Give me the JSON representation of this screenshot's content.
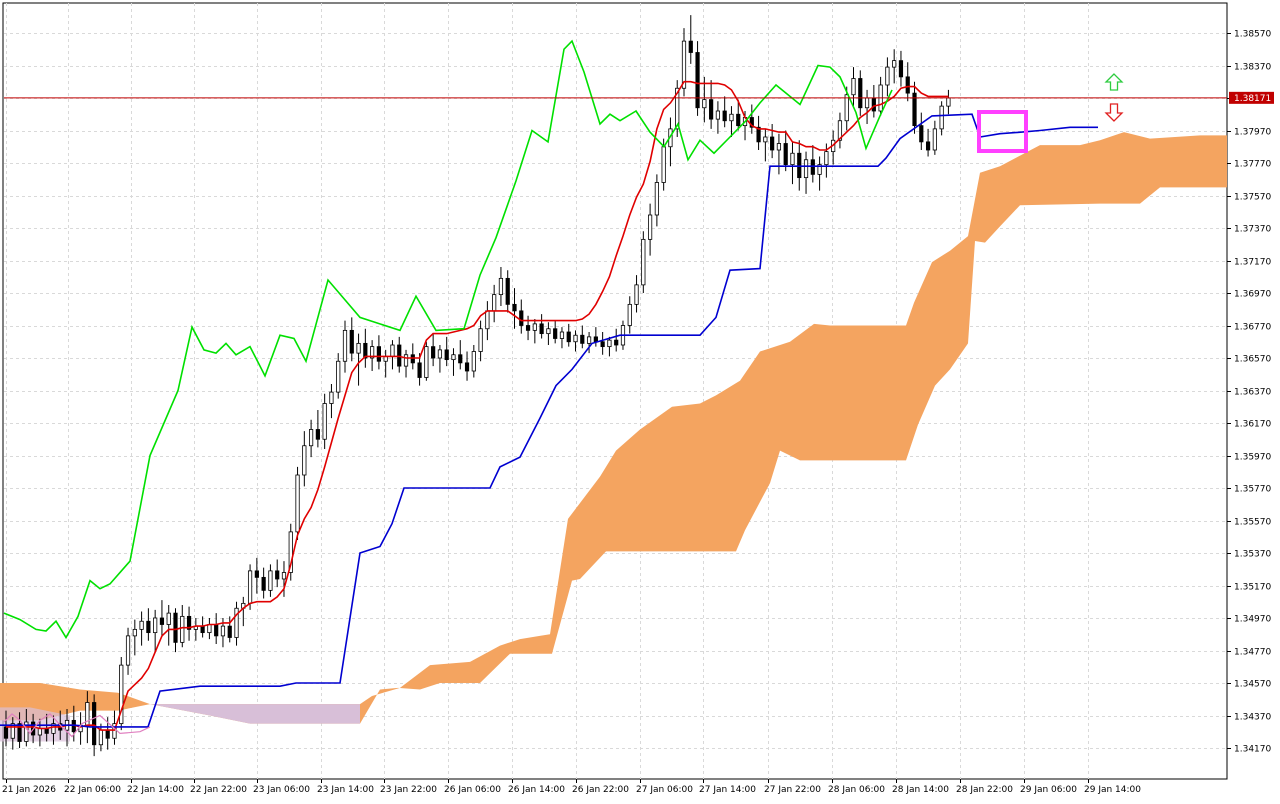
{
  "chart_data": {
    "type": "candlestick",
    "title": "",
    "colors": {
      "background": "#ffffff",
      "grid": "#d9d9d9",
      "candle_up": "#ffffff",
      "candle_down": "#000000",
      "candle_outline": "#000000",
      "tenkan_sen": "#e00000",
      "kijun_sen": "#0000d0",
      "chikou_span": "#00e000",
      "kumo_bull": "#f4a460",
      "kumo_bear": "#d8bfd8",
      "current_price_line": "#c00000",
      "highlight_box": "#ff40ff",
      "arrow_up": "#2ecc40",
      "arrow_down": "#e02020"
    },
    "current_price": {
      "value": 1.38171,
      "label": "1.38171"
    },
    "y_axis": {
      "range": [
        1.412,
        1.3878
      ],
      "tick_values": [
        1.3857,
        1.3837,
        1.3817,
        1.3797,
        1.3777,
        1.3757,
        1.3737,
        1.3717,
        1.3697,
        1.3677,
        1.3657,
        1.3637,
        1.3617,
        1.3597,
        1.3577,
        1.3557,
        1.3537,
        1.3517,
        1.3497,
        1.3477,
        1.3457,
        1.3437,
        1.3417
      ],
      "tick_labels": [
        "1.38570",
        "1.38370",
        "1.38170",
        "1.37970",
        "1.37770",
        "1.37570",
        "1.37370",
        "1.37170",
        "1.36970",
        "1.36770",
        "1.36570",
        "1.36370",
        "1.36170",
        "1.35970",
        "1.35770",
        "1.35570",
        "1.35370",
        "1.35170",
        "1.34970",
        "1.34770",
        "1.34570",
        "1.34370",
        "1.34170"
      ]
    },
    "x_axis": {
      "tick_labels": [
        "21 Jan 2026",
        "22 Jan 06:00",
        "22 Jan 14:00",
        "22 Jan 22:00",
        "23 Jan 06:00",
        "23 Jan 14:00",
        "23 Jan 22:00",
        "26 Jan 06:00",
        "26 Jan 14:00",
        "26 Jan 22:00",
        "27 Jan 06:00",
        "27 Jan 14:00",
        "27 Jan 22:00",
        "28 Jan 06:00",
        "28 Jan 14:00",
        "28 Jan 22:00",
        "29 Jan 06:00",
        "29 Jan 14:00"
      ]
    },
    "candles": [
      [
        1.343,
        1.344,
        1.3418,
        1.3423
      ],
      [
        1.3423,
        1.3436,
        1.3416,
        1.3432
      ],
      [
        1.3432,
        1.3439,
        1.3417,
        1.3421
      ],
      [
        1.3421,
        1.3441,
        1.3418,
        1.3433
      ],
      [
        1.3433,
        1.3438,
        1.342,
        1.3425
      ],
      [
        1.3425,
        1.3435,
        1.3418,
        1.3429
      ],
      [
        1.3429,
        1.3438,
        1.3421,
        1.3426
      ],
      [
        1.3426,
        1.3437,
        1.3419,
        1.3432
      ],
      [
        1.3432,
        1.344,
        1.3422,
        1.3428
      ],
      [
        1.3428,
        1.3441,
        1.3418,
        1.3434
      ],
      [
        1.3434,
        1.3443,
        1.3421,
        1.3427
      ],
      [
        1.3427,
        1.3439,
        1.3419,
        1.3431
      ],
      [
        1.3431,
        1.3452,
        1.342,
        1.3445
      ],
      [
        1.3445,
        1.345,
        1.3412,
        1.3419
      ],
      [
        1.3419,
        1.3432,
        1.3415,
        1.3428
      ],
      [
        1.3428,
        1.3436,
        1.3416,
        1.3423
      ],
      [
        1.3423,
        1.344,
        1.3419,
        1.3432
      ],
      [
        1.3432,
        1.3473,
        1.3428,
        1.3468
      ],
      [
        1.3468,
        1.3491,
        1.3462,
        1.3486
      ],
      [
        1.3486,
        1.3496,
        1.3474,
        1.349
      ],
      [
        1.349,
        1.3501,
        1.348,
        1.3495
      ],
      [
        1.3495,
        1.3503,
        1.3483,
        1.3488
      ],
      [
        1.3488,
        1.3502,
        1.3476,
        1.3497
      ],
      [
        1.3497,
        1.3508,
        1.3486,
        1.3493
      ],
      [
        1.3493,
        1.3505,
        1.348,
        1.35
      ],
      [
        1.35,
        1.3503,
        1.3476,
        1.3482
      ],
      [
        1.3482,
        1.3505,
        1.3479,
        1.3498
      ],
      [
        1.3498,
        1.3504,
        1.3483,
        1.349
      ],
      [
        1.349,
        1.3497,
        1.3483,
        1.3492
      ],
      [
        1.3492,
        1.3498,
        1.3485,
        1.3488
      ],
      [
        1.3488,
        1.3497,
        1.3484,
        1.3493
      ],
      [
        1.3493,
        1.35,
        1.3481,
        1.3486
      ],
      [
        1.3486,
        1.3497,
        1.3479,
        1.3492
      ],
      [
        1.3492,
        1.3498,
        1.3482,
        1.3485
      ],
      [
        1.3485,
        1.3507,
        1.348,
        1.3503
      ],
      [
        1.3503,
        1.351,
        1.3492,
        1.3506
      ],
      [
        1.3506,
        1.353,
        1.3502,
        1.3526
      ],
      [
        1.3526,
        1.3534,
        1.3512,
        1.3522
      ],
      [
        1.3522,
        1.3528,
        1.3509,
        1.3514
      ],
      [
        1.3514,
        1.353,
        1.351,
        1.3526
      ],
      [
        1.3526,
        1.3533,
        1.3516,
        1.3521
      ],
      [
        1.3521,
        1.3532,
        1.351,
        1.3525
      ],
      [
        1.3525,
        1.3555,
        1.352,
        1.355
      ],
      [
        1.355,
        1.359,
        1.3545,
        1.3585
      ],
      [
        1.3585,
        1.3612,
        1.3578,
        1.3603
      ],
      [
        1.3603,
        1.3619,
        1.3596,
        1.3613
      ],
      [
        1.3613,
        1.3625,
        1.3602,
        1.3607
      ],
      [
        1.3607,
        1.3635,
        1.3601,
        1.3629
      ],
      [
        1.3629,
        1.3641,
        1.362,
        1.3636
      ],
      [
        1.3636,
        1.366,
        1.3632,
        1.3655
      ],
      [
        1.3655,
        1.368,
        1.3648,
        1.3674
      ],
      [
        1.3674,
        1.3682,
        1.3655,
        1.366
      ],
      [
        1.366,
        1.3672,
        1.364,
        1.3666
      ],
      [
        1.3666,
        1.3675,
        1.3651,
        1.3657
      ],
      [
        1.3657,
        1.3668,
        1.3649,
        1.3664
      ],
      [
        1.3664,
        1.3671,
        1.365,
        1.3655
      ],
      [
        1.3655,
        1.3662,
        1.3645,
        1.3658
      ],
      [
        1.3658,
        1.3668,
        1.365,
        1.3665
      ],
      [
        1.3665,
        1.367,
        1.3648,
        1.3652
      ],
      [
        1.3652,
        1.3662,
        1.3645,
        1.3659
      ],
      [
        1.3659,
        1.3666,
        1.365,
        1.3654
      ],
      [
        1.3654,
        1.366,
        1.364,
        1.3645
      ],
      [
        1.3645,
        1.3667,
        1.3643,
        1.3664
      ],
      [
        1.3664,
        1.3672,
        1.3652,
        1.3657
      ],
      [
        1.3657,
        1.3665,
        1.3648,
        1.3662
      ],
      [
        1.3662,
        1.367,
        1.3652,
        1.3656
      ],
      [
        1.3656,
        1.3663,
        1.3646,
        1.3659
      ],
      [
        1.3659,
        1.3668,
        1.365,
        1.3654
      ],
      [
        1.3654,
        1.3661,
        1.3643,
        1.3649
      ],
      [
        1.3649,
        1.3665,
        1.3645,
        1.3661
      ],
      [
        1.3661,
        1.368,
        1.3655,
        1.3675
      ],
      [
        1.3675,
        1.3692,
        1.3668,
        1.3686
      ],
      [
        1.3686,
        1.3702,
        1.3679,
        1.3696
      ],
      [
        1.3696,
        1.3713,
        1.3689,
        1.3706
      ],
      [
        1.3706,
        1.3711,
        1.3685,
        1.369
      ],
      [
        1.369,
        1.37,
        1.3675,
        1.3686
      ],
      [
        1.3686,
        1.3693,
        1.3672,
        1.3677
      ],
      [
        1.3677,
        1.3683,
        1.3668,
        1.3674
      ],
      [
        1.3674,
        1.3681,
        1.3666,
        1.3678
      ],
      [
        1.3678,
        1.3684,
        1.3669,
        1.3672
      ],
      [
        1.3672,
        1.3679,
        1.3665,
        1.3675
      ],
      [
        1.3675,
        1.368,
        1.3666,
        1.3669
      ],
      [
        1.3669,
        1.3676,
        1.3663,
        1.3673
      ],
      [
        1.3673,
        1.3678,
        1.3664,
        1.3667
      ],
      [
        1.3667,
        1.3674,
        1.3661,
        1.3671
      ],
      [
        1.3671,
        1.3677,
        1.3663,
        1.3666
      ],
      [
        1.3666,
        1.3673,
        1.366,
        1.367
      ],
      [
        1.367,
        1.3676,
        1.3664,
        1.3667
      ],
      [
        1.3667,
        1.3673,
        1.3659,
        1.3664
      ],
      [
        1.3664,
        1.367,
        1.3658,
        1.3668
      ],
      [
        1.3668,
        1.3675,
        1.3661,
        1.3665
      ],
      [
        1.3665,
        1.368,
        1.3662,
        1.3677
      ],
      [
        1.3677,
        1.3695,
        1.3672,
        1.369
      ],
      [
        1.369,
        1.3708,
        1.3685,
        1.3702
      ],
      [
        1.3702,
        1.3735,
        1.3697,
        1.373
      ],
      [
        1.373,
        1.3752,
        1.372,
        1.3745
      ],
      [
        1.3745,
        1.377,
        1.3738,
        1.3765
      ],
      [
        1.3765,
        1.3792,
        1.376,
        1.3787
      ],
      [
        1.3787,
        1.3805,
        1.3775,
        1.3798
      ],
      [
        1.3798,
        1.3828,
        1.3793,
        1.3823
      ],
      [
        1.3823,
        1.386,
        1.3818,
        1.3852
      ],
      [
        1.3852,
        1.3868,
        1.3838,
        1.3845
      ],
      [
        1.3845,
        1.3852,
        1.3806,
        1.3811
      ],
      [
        1.3811,
        1.383,
        1.3802,
        1.3816
      ],
      [
        1.3816,
        1.3828,
        1.3798,
        1.3804
      ],
      [
        1.3804,
        1.3815,
        1.3795,
        1.3809
      ],
      [
        1.3809,
        1.3818,
        1.3799,
        1.3803
      ],
      [
        1.3803,
        1.3812,
        1.3793,
        1.3807
      ],
      [
        1.3807,
        1.3816,
        1.3797,
        1.38
      ],
      [
        1.38,
        1.3809,
        1.3791,
        1.3805
      ],
      [
        1.3805,
        1.3813,
        1.3795,
        1.3799
      ],
      [
        1.3799,
        1.3806,
        1.3785,
        1.379
      ],
      [
        1.379,
        1.3798,
        1.3778,
        1.3793
      ],
      [
        1.3793,
        1.3801,
        1.378,
        1.3785
      ],
      [
        1.3785,
        1.3795,
        1.377,
        1.3789
      ],
      [
        1.3789,
        1.3797,
        1.3772,
        1.3776
      ],
      [
        1.3776,
        1.379,
        1.3764,
        1.3783
      ],
      [
        1.3783,
        1.3791,
        1.376,
        1.3768
      ],
      [
        1.3768,
        1.3784,
        1.3758,
        1.3779
      ],
      [
        1.3779,
        1.3788,
        1.3765,
        1.377
      ],
      [
        1.377,
        1.3781,
        1.376,
        1.3776
      ],
      [
        1.3776,
        1.3789,
        1.3768,
        1.3784
      ],
      [
        1.3784,
        1.3797,
        1.3776,
        1.3791
      ],
      [
        1.3791,
        1.3808,
        1.3786,
        1.3803
      ],
      [
        1.3803,
        1.3824,
        1.3797,
        1.3819
      ],
      [
        1.3819,
        1.3836,
        1.3812,
        1.3829
      ],
      [
        1.3829,
        1.3834,
        1.3806,
        1.3811
      ],
      [
        1.3811,
        1.3822,
        1.3801,
        1.3817
      ],
      [
        1.3817,
        1.3825,
        1.3805,
        1.3809
      ],
      [
        1.3809,
        1.383,
        1.3806,
        1.3825
      ],
      [
        1.3825,
        1.3842,
        1.3818,
        1.3836
      ],
      [
        1.3836,
        1.3847,
        1.3826,
        1.384
      ],
      [
        1.384,
        1.3846,
        1.3824,
        1.383
      ],
      [
        1.383,
        1.3839,
        1.3815,
        1.382
      ],
      [
        1.382,
        1.3827,
        1.3795,
        1.38
      ],
      [
        1.38,
        1.3808,
        1.3785,
        1.379
      ],
      [
        1.379,
        1.3798,
        1.3781,
        1.3785
      ],
      [
        1.3785,
        1.3803,
        1.3782,
        1.3798
      ],
      [
        1.3798,
        1.3815,
        1.3794,
        1.3812
      ],
      [
        1.3812,
        1.3822,
        1.3807,
        1.3817
      ]
    ],
    "tenkan_sen": [
      1.343,
      1.343,
      1.343,
      1.343,
      1.343,
      1.3429,
      1.3429,
      1.343,
      1.343,
      1.3431,
      1.3431,
      1.343,
      1.3431,
      1.3431,
      1.3428,
      1.3428,
      1.3428,
      1.344,
      1.3452,
      1.3456,
      1.346,
      1.3466,
      1.3476,
      1.3486,
      1.349,
      1.349,
      1.3491,
      1.3491,
      1.3492,
      1.3492,
      1.3493,
      1.3493,
      1.3494,
      1.3494,
      1.3499,
      1.3503,
      1.3506,
      1.3507,
      1.3507,
      1.3507,
      1.351,
      1.3515,
      1.353,
      1.3548,
      1.3558,
      1.3565,
      1.3576,
      1.359,
      1.3605,
      1.362,
      1.3634,
      1.3648,
      1.3654,
      1.3658,
      1.3658,
      1.3658,
      1.3658,
      1.3658,
      1.3658,
      1.3657,
      1.3657,
      1.3657,
      1.3668,
      1.3672,
      1.3672,
      1.3672,
      1.3673,
      1.3674,
      1.3675,
      1.3677,
      1.3683,
      1.3686,
      1.3686,
      1.3686,
      1.3686,
      1.3683,
      1.368,
      1.368,
      1.368,
      1.368,
      1.368,
      1.368,
      1.368,
      1.368,
      1.368,
      1.3681,
      1.3684,
      1.369,
      1.3698,
      1.3707,
      1.372,
      1.3732,
      1.3745,
      1.3756,
      1.3764,
      1.3778,
      1.3798,
      1.381,
      1.3814,
      1.382,
      1.3827,
      1.3827,
      1.3826,
      1.3826,
      1.3826,
      1.3826,
      1.3825,
      1.3822,
      1.3815,
      1.3805,
      1.38,
      1.3798,
      1.3798,
      1.3797,
      1.3796,
      1.3796,
      1.379,
      1.3789,
      1.3787,
      1.3787,
      1.3785,
      1.3785,
      1.3788,
      1.3792,
      1.3796,
      1.38,
      1.3805,
      1.3808,
      1.3812,
      1.3813,
      1.3815,
      1.3818,
      1.3823,
      1.3824,
      1.3824,
      1.382,
      1.3818,
      1.3818,
      1.3818,
      1.3818
    ]
  }
}
